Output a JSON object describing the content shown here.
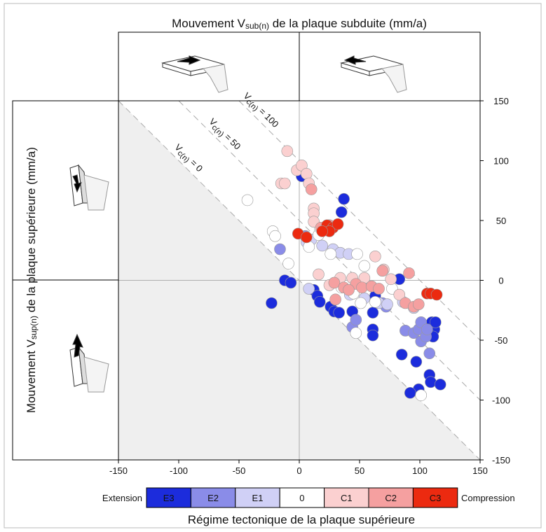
{
  "chart_data": {
    "type": "scatter",
    "title": {
      "pre": "Mouvement V",
      "sub": "sub(n)",
      "post": " de la plaque subduite (mm/a)"
    },
    "y_label": {
      "pre": "Mouvement V",
      "sub": "sup(n)",
      "post": " de la plaque supérieure (mm/a)"
    },
    "xlim": [
      -150,
      150
    ],
    "ylim": [
      -150,
      150
    ],
    "xticks": [
      -150,
      -100,
      -50,
      0,
      50,
      100,
      150
    ],
    "yticks": [
      -150,
      -100,
      -50,
      0,
      50,
      100,
      150
    ],
    "y_axis_side": "right",
    "lines": [
      {
        "value": 0,
        "pre": "V",
        "sub": "c(n)",
        "post": " = 0"
      },
      {
        "value": 50,
        "pre": "V",
        "sub": "c(n)",
        "post": " = 50"
      },
      {
        "value": 100,
        "pre": "V",
        "sub": "c(n)",
        "post": " = 100"
      }
    ],
    "legend": {
      "title": "Régime tectonique de la plaque supérieure",
      "left": "Extension",
      "right": "Compression"
    },
    "series": [
      {
        "name": "E3",
        "color": "#1c2cdc",
        "x": [
          2,
          37,
          35,
          -12,
          -7,
          -23,
          12,
          15,
          17,
          26,
          29,
          33,
          44,
          63,
          61,
          61,
          61,
          83,
          85,
          97,
          99,
          92,
          108,
          109,
          117,
          110,
          112,
          111,
          113
        ],
        "y": [
          87,
          68,
          57,
          0,
          -2,
          -19,
          -8,
          -13,
          -18,
          -22,
          -26,
          -27,
          -26,
          -13,
          -27,
          -41,
          -46,
          1,
          -62,
          -68,
          -91,
          -94,
          -79,
          -85,
          -87,
          -35,
          -41,
          -47,
          -35
        ]
      },
      {
        "name": "E2",
        "color": "#8a8ce8",
        "x": [
          -16,
          5,
          44,
          47,
          69,
          72,
          88,
          95,
          99,
          101,
          105,
          108,
          101,
          106
        ],
        "y": [
          26,
          37,
          -39,
          -33,
          -19,
          -22,
          -42,
          -44,
          -41,
          -51,
          -47,
          -61,
          -35,
          -41
        ]
      },
      {
        "name": "E1",
        "color": "#d0d0f6",
        "x": [
          6,
          10,
          19,
          28,
          34,
          41,
          8,
          42,
          54,
          66,
          73,
          86,
          95
        ],
        "y": [
          32,
          34,
          29,
          26,
          23,
          22,
          -7,
          -12,
          -15,
          -19,
          -20,
          -18,
          -23
        ]
      },
      {
        "name": "0",
        "color": "#ffffff",
        "x": [
          -43,
          -22,
          -20,
          -9,
          8,
          16,
          17,
          26,
          48,
          54,
          35,
          45,
          51,
          63,
          47,
          101,
          77
        ],
        "y": [
          67,
          41,
          37,
          14,
          28,
          38,
          44,
          22,
          22,
          12,
          -6,
          -11,
          -19,
          -18,
          -44,
          -96,
          -7
        ]
      },
      {
        "name": "C1",
        "color": "#fbd0d0",
        "x": [
          -10,
          -2,
          2,
          6,
          8,
          -15,
          -12,
          12,
          12,
          12,
          16,
          25,
          34,
          44,
          54,
          63,
          70,
          76,
          83
        ],
        "y": [
          108,
          92,
          96,
          89,
          81,
          81,
          81,
          60,
          56,
          49,
          5,
          -4,
          2,
          2,
          2,
          20,
          9,
          1,
          -12
        ]
      },
      {
        "name": "C2",
        "color": "#f5a0a0",
        "x": [
          10,
          18,
          25,
          29,
          37,
          47,
          52,
          60,
          69,
          91,
          88,
          95,
          99,
          66,
          30,
          41
        ],
        "y": [
          76,
          44,
          46,
          -2,
          -6,
          -3,
          -6,
          -5,
          8,
          6,
          -19,
          -22,
          -20,
          -7,
          -16,
          -8
        ]
      },
      {
        "name": "C3",
        "color": "#ec2a10",
        "x": [
          -1,
          6,
          23,
          28,
          32,
          25,
          19,
          106,
          109,
          114
        ],
        "y": [
          39,
          36,
          46,
          44,
          47,
          41,
          41,
          -11,
          -11,
          -12
        ]
      }
    ]
  }
}
